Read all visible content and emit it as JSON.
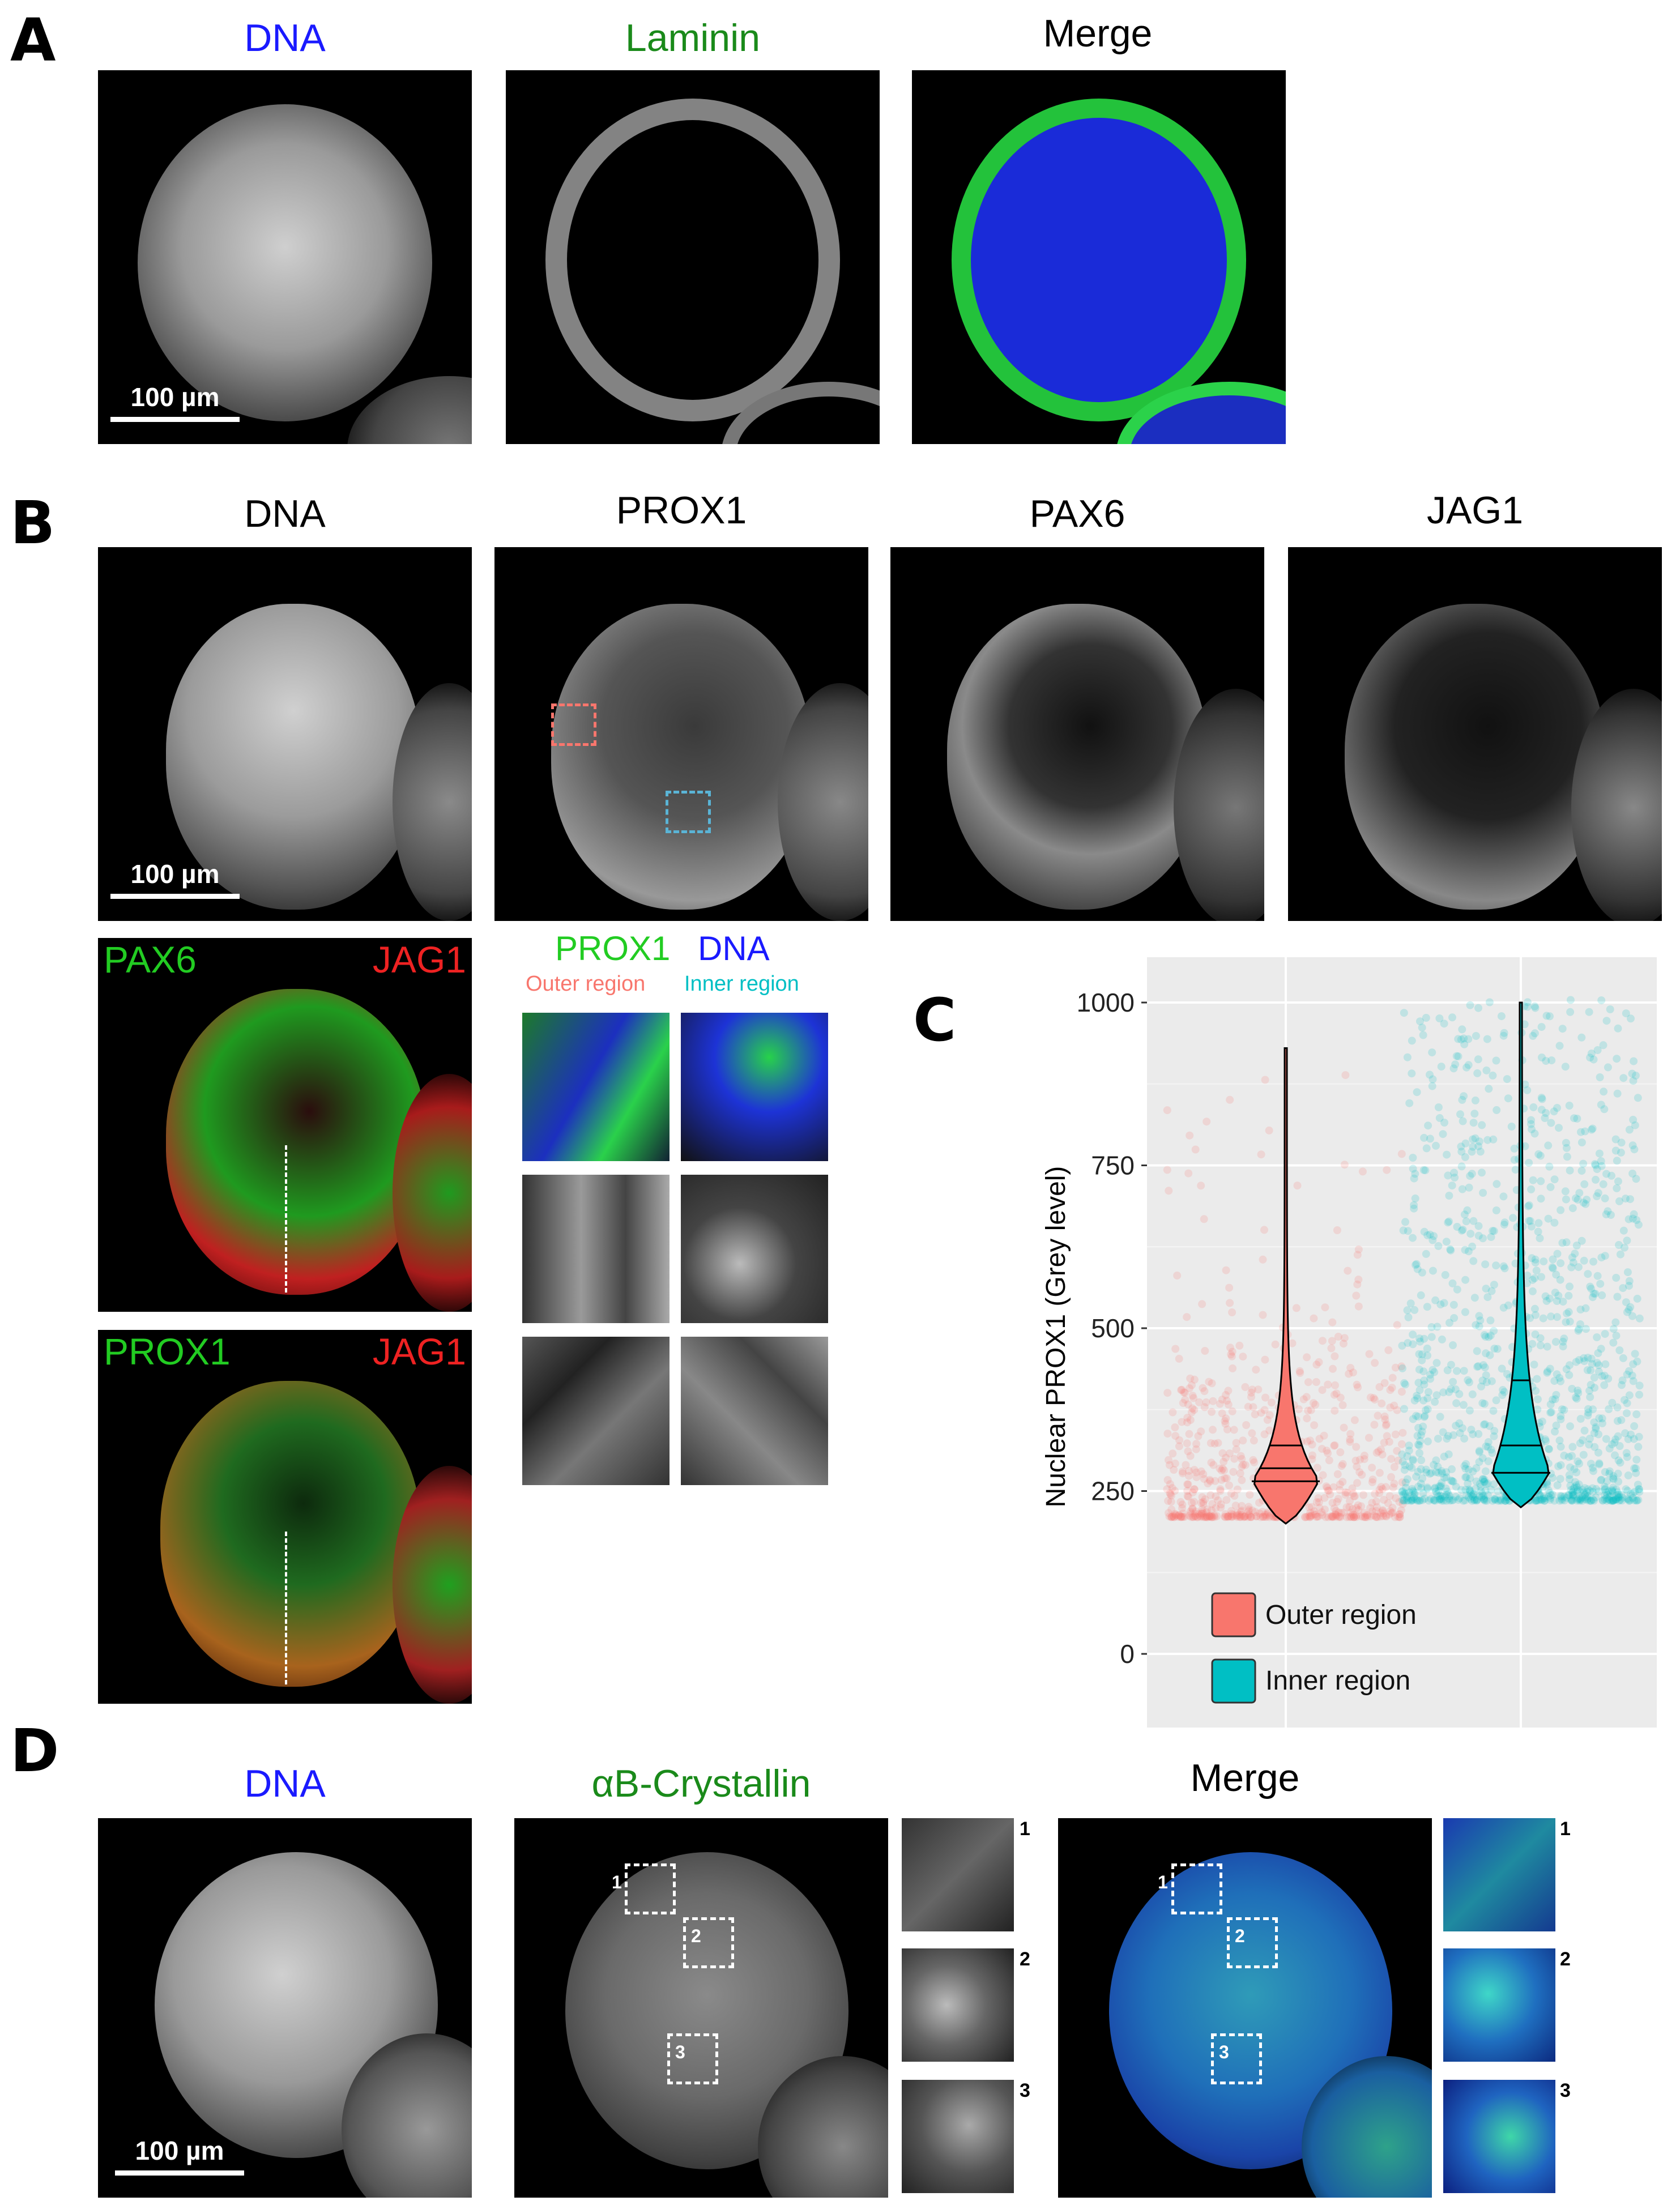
{
  "panel_a": {
    "letter": "A",
    "titles": [
      "DNA",
      "Laminin",
      "Merge"
    ],
    "title_colors": [
      "#1a1aff",
      "#1a8a1a",
      "#000000"
    ],
    "scalebar": "100 µm"
  },
  "panel_b": {
    "letter": "B",
    "titles": [
      "DNA",
      "PROX1",
      "PAX6",
      "JAG1"
    ],
    "scalebar": "100 µm",
    "overlay1": {
      "left": "PAX6",
      "right": "JAG1"
    },
    "overlay2": {
      "left": "PROX1",
      "right": "JAG1"
    },
    "crop_header": {
      "green": "PROX1",
      "blue": "DNA",
      "outer": "Outer region",
      "inner": "Inner region"
    },
    "colors": {
      "green": "#22cc22",
      "red": "#ee2222",
      "blue": "#1a1aff",
      "outer": "#f8766d",
      "inner": "#00bfc4"
    }
  },
  "panel_c": {
    "letter": "C",
    "chart_data": {
      "type": "violin",
      "ylabel": "Nuclear PROX1 (Grey level)",
      "ylim": [
        0,
        1000
      ],
      "yticks": [
        0,
        250,
        500,
        750,
        1000
      ],
      "legend_placement": "bottom-left",
      "grid": true,
      "series": [
        {
          "name": "Outer region",
          "color": "#f8766d",
          "min": 200,
          "max": 930,
          "quartiles": [
            265,
            285,
            320
          ]
        },
        {
          "name": "Inner region",
          "color": "#00bfc4",
          "min": 225,
          "max": 1000,
          "quartiles": [
            278,
            320,
            420
          ]
        }
      ]
    }
  },
  "panel_d": {
    "letter": "D",
    "titles": [
      "DNA",
      "αB-Crystallin",
      "Merge"
    ],
    "title_colors": [
      "#1a1aff",
      "#1a8a1a",
      "#000000"
    ],
    "scalebar": "100 µm",
    "crop_numbers": [
      "1",
      "2",
      "3"
    ]
  }
}
